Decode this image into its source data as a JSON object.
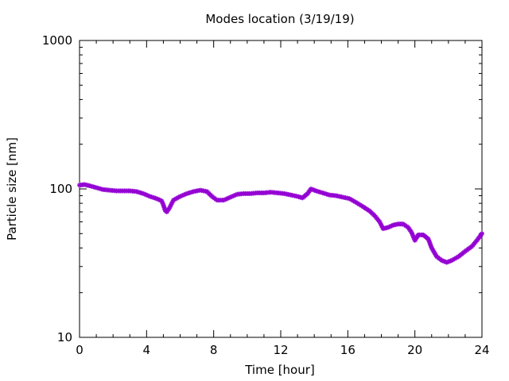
{
  "chart_data": {
    "type": "scatter",
    "title": "Modes location (3/19/19)",
    "xlabel": "Time [hour]",
    "ylabel": "Particle size [nm]",
    "xlim": [
      0,
      24
    ],
    "ylim": [
      10,
      1000
    ],
    "yscale": "log",
    "x_ticks": [
      0,
      4,
      8,
      12,
      16,
      20,
      24
    ],
    "x_tick_labels": [
      "0",
      "4",
      "8",
      "12",
      "16",
      "20",
      "24"
    ],
    "y_ticks": [
      10,
      100,
      1000
    ],
    "y_tick_labels": [
      "10",
      "100",
      "1000"
    ],
    "grid": false,
    "legend": "none",
    "marker_color": "#9400d3",
    "marker": "asterisk",
    "series": [
      {
        "points": [
          [
            0.0,
            106
          ],
          [
            0.3,
            107
          ],
          [
            0.6,
            105
          ],
          [
            1.0,
            102
          ],
          [
            1.4,
            99
          ],
          [
            1.8,
            98
          ],
          [
            2.2,
            97
          ],
          [
            2.6,
            97
          ],
          [
            3.0,
            97
          ],
          [
            3.4,
            96
          ],
          [
            3.8,
            93
          ],
          [
            4.2,
            89
          ],
          [
            4.6,
            86
          ],
          [
            4.9,
            83
          ],
          [
            5.0,
            78
          ],
          [
            5.1,
            72
          ],
          [
            5.2,
            70
          ],
          [
            5.35,
            74
          ],
          [
            5.6,
            84
          ],
          [
            6.0,
            89
          ],
          [
            6.4,
            93
          ],
          [
            6.8,
            96
          ],
          [
            7.2,
            98
          ],
          [
            7.6,
            96
          ],
          [
            7.9,
            89
          ],
          [
            8.2,
            84
          ],
          [
            8.6,
            84
          ],
          [
            9.0,
            88
          ],
          [
            9.4,
            92
          ],
          [
            9.8,
            93
          ],
          [
            10.2,
            93
          ],
          [
            10.6,
            94
          ],
          [
            11.0,
            94
          ],
          [
            11.4,
            95
          ],
          [
            11.8,
            94
          ],
          [
            12.2,
            93
          ],
          [
            12.6,
            91
          ],
          [
            13.0,
            89
          ],
          [
            13.3,
            87
          ],
          [
            13.6,
            93
          ],
          [
            13.8,
            100
          ],
          [
            14.1,
            97
          ],
          [
            14.5,
            94
          ],
          [
            14.9,
            91
          ],
          [
            15.3,
            90
          ],
          [
            15.7,
            88
          ],
          [
            16.1,
            86
          ],
          [
            16.5,
            81
          ],
          [
            16.9,
            76
          ],
          [
            17.3,
            71
          ],
          [
            17.6,
            66
          ],
          [
            17.9,
            60
          ],
          [
            18.1,
            54
          ],
          [
            18.4,
            55
          ],
          [
            18.7,
            57
          ],
          [
            19.0,
            58
          ],
          [
            19.3,
            58
          ],
          [
            19.6,
            55
          ],
          [
            19.8,
            51
          ],
          [
            20.0,
            45
          ],
          [
            20.2,
            49
          ],
          [
            20.5,
            49
          ],
          [
            20.8,
            46
          ],
          [
            21.0,
            40
          ],
          [
            21.3,
            35
          ],
          [
            21.6,
            33
          ],
          [
            21.9,
            32
          ],
          [
            22.2,
            33
          ],
          [
            22.6,
            35
          ],
          [
            23.0,
            38
          ],
          [
            23.4,
            41
          ],
          [
            23.7,
            45
          ],
          [
            24.0,
            50
          ]
        ]
      }
    ]
  }
}
